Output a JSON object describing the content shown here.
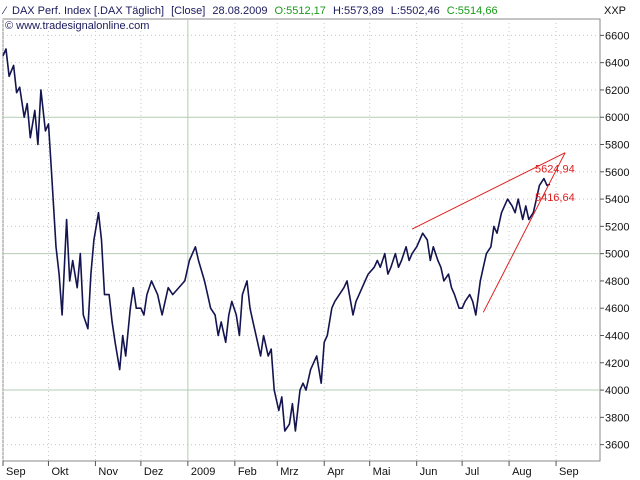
{
  "header": {
    "symbol": "DAX Perf. Index [.DAX  Täglich]",
    "mode": "[Close]",
    "date": "28.08.2009",
    "open": "O:5512,17",
    "high": "H:5573,89",
    "low": "L:5502,46",
    "close": "C:5514,66",
    "source": "© www.tradesignalonline.com",
    "unit": "XXP"
  },
  "colors": {
    "line": "#141450",
    "trend": "#e02020",
    "open_close": "#1a9a1a",
    "header_text": "#1a1a5e"
  },
  "chart_data": {
    "type": "line",
    "title": "DAX Perf. Index [.DAX  Täglich]",
    "xlabel": "",
    "ylabel": "",
    "ylim": [
      3480,
      6720
    ],
    "xlim": [
      "2008-09-01",
      "2009-09-30"
    ],
    "grid": true,
    "y_ticks": [
      3600,
      3800,
      4000,
      4200,
      4400,
      4600,
      4800,
      5000,
      5200,
      5400,
      5600,
      5800,
      6000,
      6200,
      6400,
      6600
    ],
    "y_tick_labels": [
      "3600",
      "3800",
      "4000",
      "4200",
      "4400",
      "4600",
      "4800",
      "5000",
      "5200",
      "5400",
      "5600",
      "5800",
      "6000",
      "6200",
      "6400",
      "6600"
    ],
    "major_grid_y": [
      4000,
      5000,
      6000
    ],
    "x_ticks": [
      "2008-09-01",
      "2008-10-01",
      "2008-11-01",
      "2008-12-01",
      "2009-01-01",
      "2009-02-01",
      "2009-03-01",
      "2009-04-01",
      "2009-05-01",
      "2009-06-01",
      "2009-07-01",
      "2009-08-01",
      "2009-09-01"
    ],
    "x_tick_labels": [
      "Sep",
      "Okt",
      "Nov",
      "Dez",
      "2009",
      "Feb",
      "Mrz",
      "Apr",
      "Mai",
      "Jun",
      "Jul",
      "Aug",
      "Sep"
    ],
    "major_grid_x": [
      "2009-01-01"
    ],
    "series": [
      {
        "x": [
          "2008-09-01",
          "2008-09-03",
          "2008-09-05",
          "2008-09-08",
          "2008-09-10",
          "2008-09-12",
          "2008-09-15",
          "2008-09-17",
          "2008-09-19",
          "2008-09-22",
          "2008-09-24",
          "2008-09-26",
          "2008-09-29",
          "2008-10-01",
          "2008-10-03",
          "2008-10-06",
          "2008-10-08",
          "2008-10-10",
          "2008-10-13",
          "2008-10-15",
          "2008-10-17",
          "2008-10-20",
          "2008-10-22",
          "2008-10-24",
          "2008-10-27",
          "2008-10-29",
          "2008-10-31",
          "2008-11-03",
          "2008-11-05",
          "2008-11-07",
          "2008-11-10",
          "2008-11-12",
          "2008-11-14",
          "2008-11-17",
          "2008-11-19",
          "2008-11-21",
          "2008-11-24",
          "2008-11-26",
          "2008-11-28",
          "2008-12-01",
          "2008-12-03",
          "2008-12-05",
          "2008-12-08",
          "2008-12-10",
          "2008-12-12",
          "2008-12-15",
          "2008-12-17",
          "2008-12-19",
          "2008-12-22",
          "2008-12-30",
          "2009-01-02",
          "2009-01-06",
          "2009-01-08",
          "2009-01-12",
          "2009-01-14",
          "2009-01-16",
          "2009-01-19",
          "2009-01-21",
          "2009-01-23",
          "2009-01-26",
          "2009-01-28",
          "2009-01-30",
          "2009-02-02",
          "2009-02-04",
          "2009-02-06",
          "2009-02-09",
          "2009-02-11",
          "2009-02-13",
          "2009-02-16",
          "2009-02-18",
          "2009-02-20",
          "2009-02-23",
          "2009-02-25",
          "2009-02-27",
          "2009-03-02",
          "2009-03-04",
          "2009-03-06",
          "2009-03-09",
          "2009-03-11",
          "2009-03-13",
          "2009-03-16",
          "2009-03-18",
          "2009-03-20",
          "2009-03-23",
          "2009-03-25",
          "2009-03-27",
          "2009-03-30",
          "2009-04-01",
          "2009-04-03",
          "2009-04-06",
          "2009-04-08",
          "2009-04-14",
          "2009-04-16",
          "2009-04-20",
          "2009-04-22",
          "2009-04-24",
          "2009-04-28",
          "2009-04-30",
          "2009-05-04",
          "2009-05-06",
          "2009-05-08",
          "2009-05-11",
          "2009-05-13",
          "2009-05-15",
          "2009-05-18",
          "2009-05-20",
          "2009-05-22",
          "2009-05-25",
          "2009-05-27",
          "2009-05-29",
          "2009-06-01",
          "2009-06-03",
          "2009-06-05",
          "2009-06-08",
          "2009-06-10",
          "2009-06-12",
          "2009-06-15",
          "2009-06-17",
          "2009-06-19",
          "2009-06-22",
          "2009-06-24",
          "2009-06-26",
          "2009-06-29",
          "2009-07-01",
          "2009-07-03",
          "2009-07-06",
          "2009-07-08",
          "2009-07-10",
          "2009-07-13",
          "2009-07-15",
          "2009-07-17",
          "2009-07-20",
          "2009-07-22",
          "2009-07-24",
          "2009-07-27",
          "2009-07-29",
          "2009-07-31",
          "2009-08-03",
          "2009-08-05",
          "2009-08-07",
          "2009-08-10",
          "2009-08-12",
          "2009-08-14",
          "2009-08-17",
          "2009-08-19",
          "2009-08-21",
          "2009-08-24",
          "2009-08-26",
          "2009-08-28"
        ],
        "values": [
          6450,
          6500,
          6300,
          6380,
          6180,
          6220,
          6000,
          6100,
          5850,
          6050,
          5800,
          6200,
          5900,
          5950,
          5600,
          5050,
          4850,
          4550,
          5250,
          4800,
          4950,
          4750,
          5000,
          4550,
          4450,
          4850,
          5100,
          5300,
          5100,
          4700,
          4700,
          4500,
          4350,
          4150,
          4400,
          4250,
          4600,
          4750,
          4600,
          4600,
          4550,
          4700,
          4800,
          4750,
          4700,
          4550,
          4650,
          4750,
          4700,
          4800,
          4950,
          5050,
          4950,
          4800,
          4700,
          4600,
          4550,
          4400,
          4500,
          4350,
          4550,
          4650,
          4550,
          4400,
          4700,
          4800,
          4600,
          4500,
          4350,
          4250,
          4400,
          4250,
          4300,
          4000,
          3850,
          3950,
          3700,
          3750,
          3900,
          3700,
          4000,
          4050,
          4000,
          4150,
          4200,
          4250,
          4050,
          4350,
          4400,
          4600,
          4650,
          4750,
          4800,
          4550,
          4650,
          4700,
          4800,
          4850,
          4900,
          4950,
          4900,
          5000,
          4850,
          4900,
          5000,
          4900,
          4950,
          5050,
          4950,
          5000,
          5050,
          5100,
          5150,
          5100,
          4950,
          5050,
          4950,
          4900,
          4800,
          4850,
          4750,
          4700,
          4600,
          4600,
          4650,
          4700,
          4650,
          4550,
          4800,
          4900,
          5000,
          5050,
          5200,
          5150,
          5300,
          5350,
          5400,
          5350,
          5300,
          5400,
          5250,
          5350,
          5250,
          5300,
          5400,
          5500,
          5550,
          5500,
          5510
        ]
      }
    ],
    "trendlines": [
      {
        "start": [
          "2009-05-29",
          5180
        ],
        "end": [
          "2009-09-07",
          5740
        ]
      },
      {
        "start": [
          "2009-07-15",
          4570
        ],
        "end": [
          "2009-09-07",
          5740
        ]
      }
    ],
    "annotations": [
      {
        "text": "5624,94",
        "x": "2009-08-26",
        "y": 5624.94
      },
      {
        "text": "5416,64",
        "x": "2009-08-26",
        "y": 5416.64
      }
    ]
  }
}
